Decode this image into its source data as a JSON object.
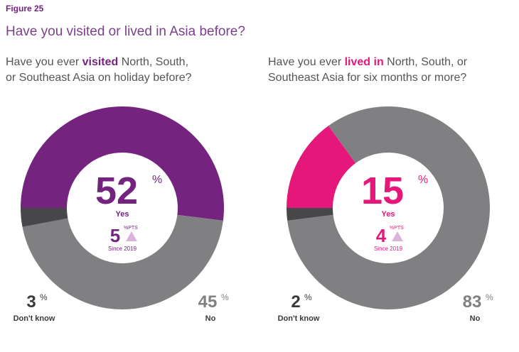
{
  "figure": "Figure 25",
  "heading": "Have you visited or lived in Asia before?",
  "chart_data": [
    {
      "type": "pie",
      "donut": true,
      "question": [
        [
          "Have you ever ",
          "visited",
          " North, South,"
        ],
        [
          "or Southeast Asia on holiday before?"
        ]
      ],
      "categories": [
        "Yes",
        "No",
        "Don't know"
      ],
      "values": [
        52,
        45,
        3
      ],
      "unit": "%",
      "colors": [
        "#74237f",
        "#808083",
        "#47474a"
      ],
      "change": {
        "value": 5,
        "unit": "%PTS",
        "since": "Since 2019"
      }
    },
    {
      "type": "pie",
      "donut": true,
      "question": [
        [
          "Have you ever ",
          "lived in",
          " North, South, or"
        ],
        [
          "Southeast Asia for six months or more?"
        ]
      ],
      "categories": [
        "Yes",
        "No",
        "Don't know"
      ],
      "values": [
        15,
        83,
        2
      ],
      "unit": "%",
      "colors": [
        "#e6177a",
        "#808083",
        "#47474a"
      ],
      "change": {
        "value": 4,
        "unit": "%PTS",
        "since": "Since 2019"
      }
    }
  ]
}
